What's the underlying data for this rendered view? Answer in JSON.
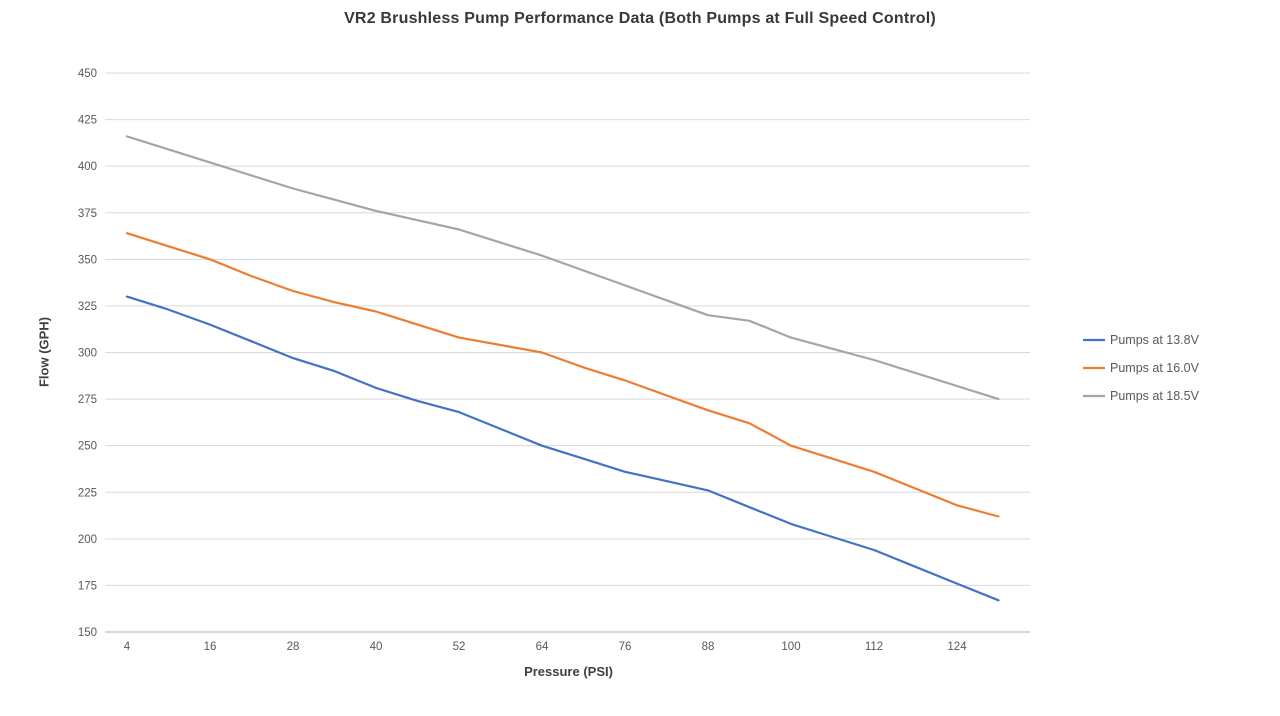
{
  "chart_data": {
    "type": "line",
    "title": "VR2 Brushless Pump Performance Data (Both Pumps at Full Speed Control)",
    "xlabel": "Pressure (PSI)",
    "ylabel": "Flow (GPH)",
    "xlim": [
      4,
      136
    ],
    "ylim": [
      150,
      450
    ],
    "x_ticks": [
      4,
      16,
      28,
      40,
      52,
      64,
      76,
      88,
      100,
      112,
      124
    ],
    "y_ticks": [
      150,
      175,
      200,
      225,
      250,
      275,
      300,
      325,
      350,
      375,
      400,
      425,
      450
    ],
    "grid": "horizontal",
    "legend_position": "right",
    "x": [
      4,
      10,
      16,
      22,
      28,
      34,
      40,
      46,
      52,
      58,
      64,
      70,
      76,
      82,
      88,
      94,
      100,
      106,
      112,
      118,
      124,
      130
    ],
    "series": [
      {
        "name": "Pumps at 13.8V",
        "color": "#4472C4",
        "values": [
          330,
          323,
          315,
          306,
          297,
          290,
          281,
          274,
          268,
          259,
          250,
          243,
          236,
          231,
          226,
          217,
          208,
          201,
          194,
          185,
          176,
          167
        ]
      },
      {
        "name": "Pumps at 16.0V",
        "color": "#ED7D31",
        "values": [
          364,
          357,
          350,
          341,
          333,
          327,
          322,
          315,
          308,
          304,
          300,
          292,
          285,
          277,
          269,
          262,
          250,
          243,
          236,
          227,
          218,
          212
        ]
      },
      {
        "name": "Pumps at 18.5V",
        "color": "#A5A5A5",
        "values": [
          416,
          409,
          402,
          395,
          388,
          382,
          376,
          371,
          366,
          359,
          352,
          344,
          336,
          328,
          320,
          317,
          308,
          302,
          296,
          289,
          282,
          275
        ]
      }
    ],
    "style": {
      "grid_color": "#D9D9D9",
      "axis_color": "#BFBFBF",
      "tick_label_color": "#595959",
      "line_width": 2.2
    }
  }
}
